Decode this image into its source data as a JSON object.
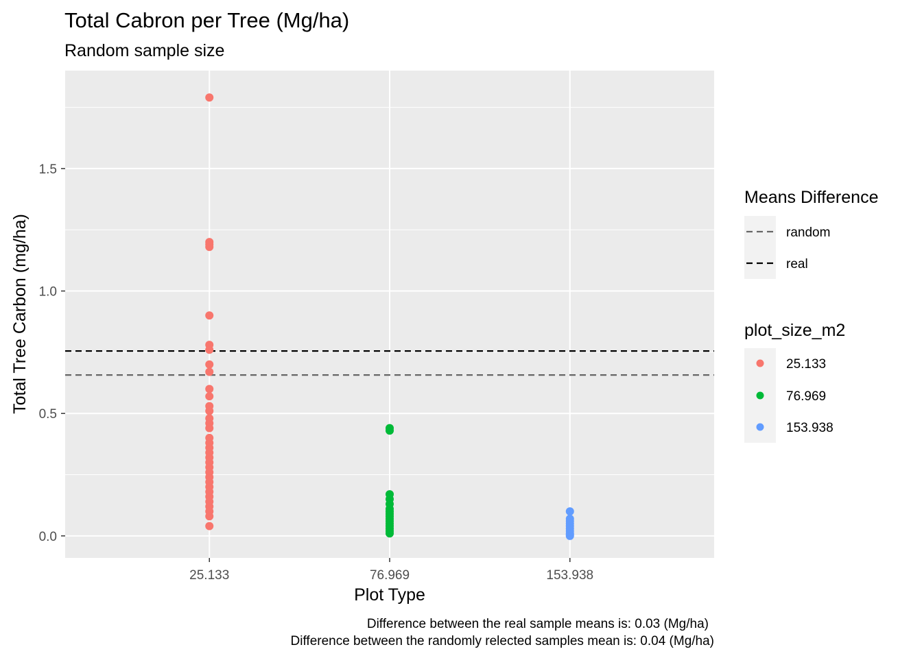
{
  "chart_data": {
    "type": "scatter",
    "title": "Total Cabron per Tree (Mg/ha)",
    "subtitle": "Random sample size",
    "xlabel": "Plot Type",
    "ylabel": "Total Tree Carbon (mg/ha)",
    "categories": [
      "25.133",
      "76.969",
      "153.938"
    ],
    "ylim": [
      -0.09,
      1.9
    ],
    "y_ticks": [
      0.0,
      0.5,
      1.0,
      1.5
    ],
    "y_tick_labels": [
      "0.0",
      "0.5",
      "1.0",
      "1.5"
    ],
    "grid": true,
    "series": [
      {
        "name": "25.133",
        "color": "#F8766D",
        "category": "25.133",
        "values": [
          1.79,
          1.2,
          1.19,
          1.18,
          0.9,
          0.78,
          0.76,
          0.7,
          0.67,
          0.6,
          0.57,
          0.53,
          0.51,
          0.48,
          0.46,
          0.44,
          0.4,
          0.38,
          0.36,
          0.34,
          0.32,
          0.3,
          0.28,
          0.26,
          0.24,
          0.22,
          0.2,
          0.18,
          0.16,
          0.14,
          0.12,
          0.1,
          0.08,
          0.04
        ]
      },
      {
        "name": "76.969",
        "color": "#00BA38",
        "category": "76.969",
        "values": [
          0.44,
          0.43,
          0.17,
          0.15,
          0.13,
          0.11,
          0.1,
          0.09,
          0.08,
          0.07,
          0.06,
          0.05,
          0.04,
          0.03,
          0.02,
          0.01
        ]
      },
      {
        "name": "153.938",
        "color": "#619CFF",
        "category": "153.938",
        "values": [
          0.1,
          0.07,
          0.06,
          0.05,
          0.04,
          0.03,
          0.02,
          0.01,
          0.005,
          0.0
        ]
      }
    ],
    "hlines": [
      {
        "name": "real",
        "y": 0.755,
        "color": "#000000"
      },
      {
        "name": "random",
        "y": 0.657,
        "color": "#666666"
      }
    ],
    "legends": [
      {
        "title": "Means Difference",
        "placement": "right",
        "entries": [
          {
            "label": "random",
            "color": "#666666",
            "kind": "dashed-line"
          },
          {
            "label": "real",
            "color": "#000000",
            "kind": "dashed-line"
          }
        ]
      },
      {
        "title": "plot_size_m2",
        "placement": "right",
        "entries": [
          {
            "label": "25.133",
            "color": "#F8766D",
            "kind": "point"
          },
          {
            "label": "76.969",
            "color": "#00BA38",
            "kind": "point"
          },
          {
            "label": "153.938",
            "color": "#619CFF",
            "kind": "point"
          }
        ]
      }
    ],
    "captions": [
      "Difference between the real sample means is: 0.03 (Mg/ha)",
      "Difference between the randomly relected samples mean is: 0.04 (Mg/ha)"
    ]
  }
}
